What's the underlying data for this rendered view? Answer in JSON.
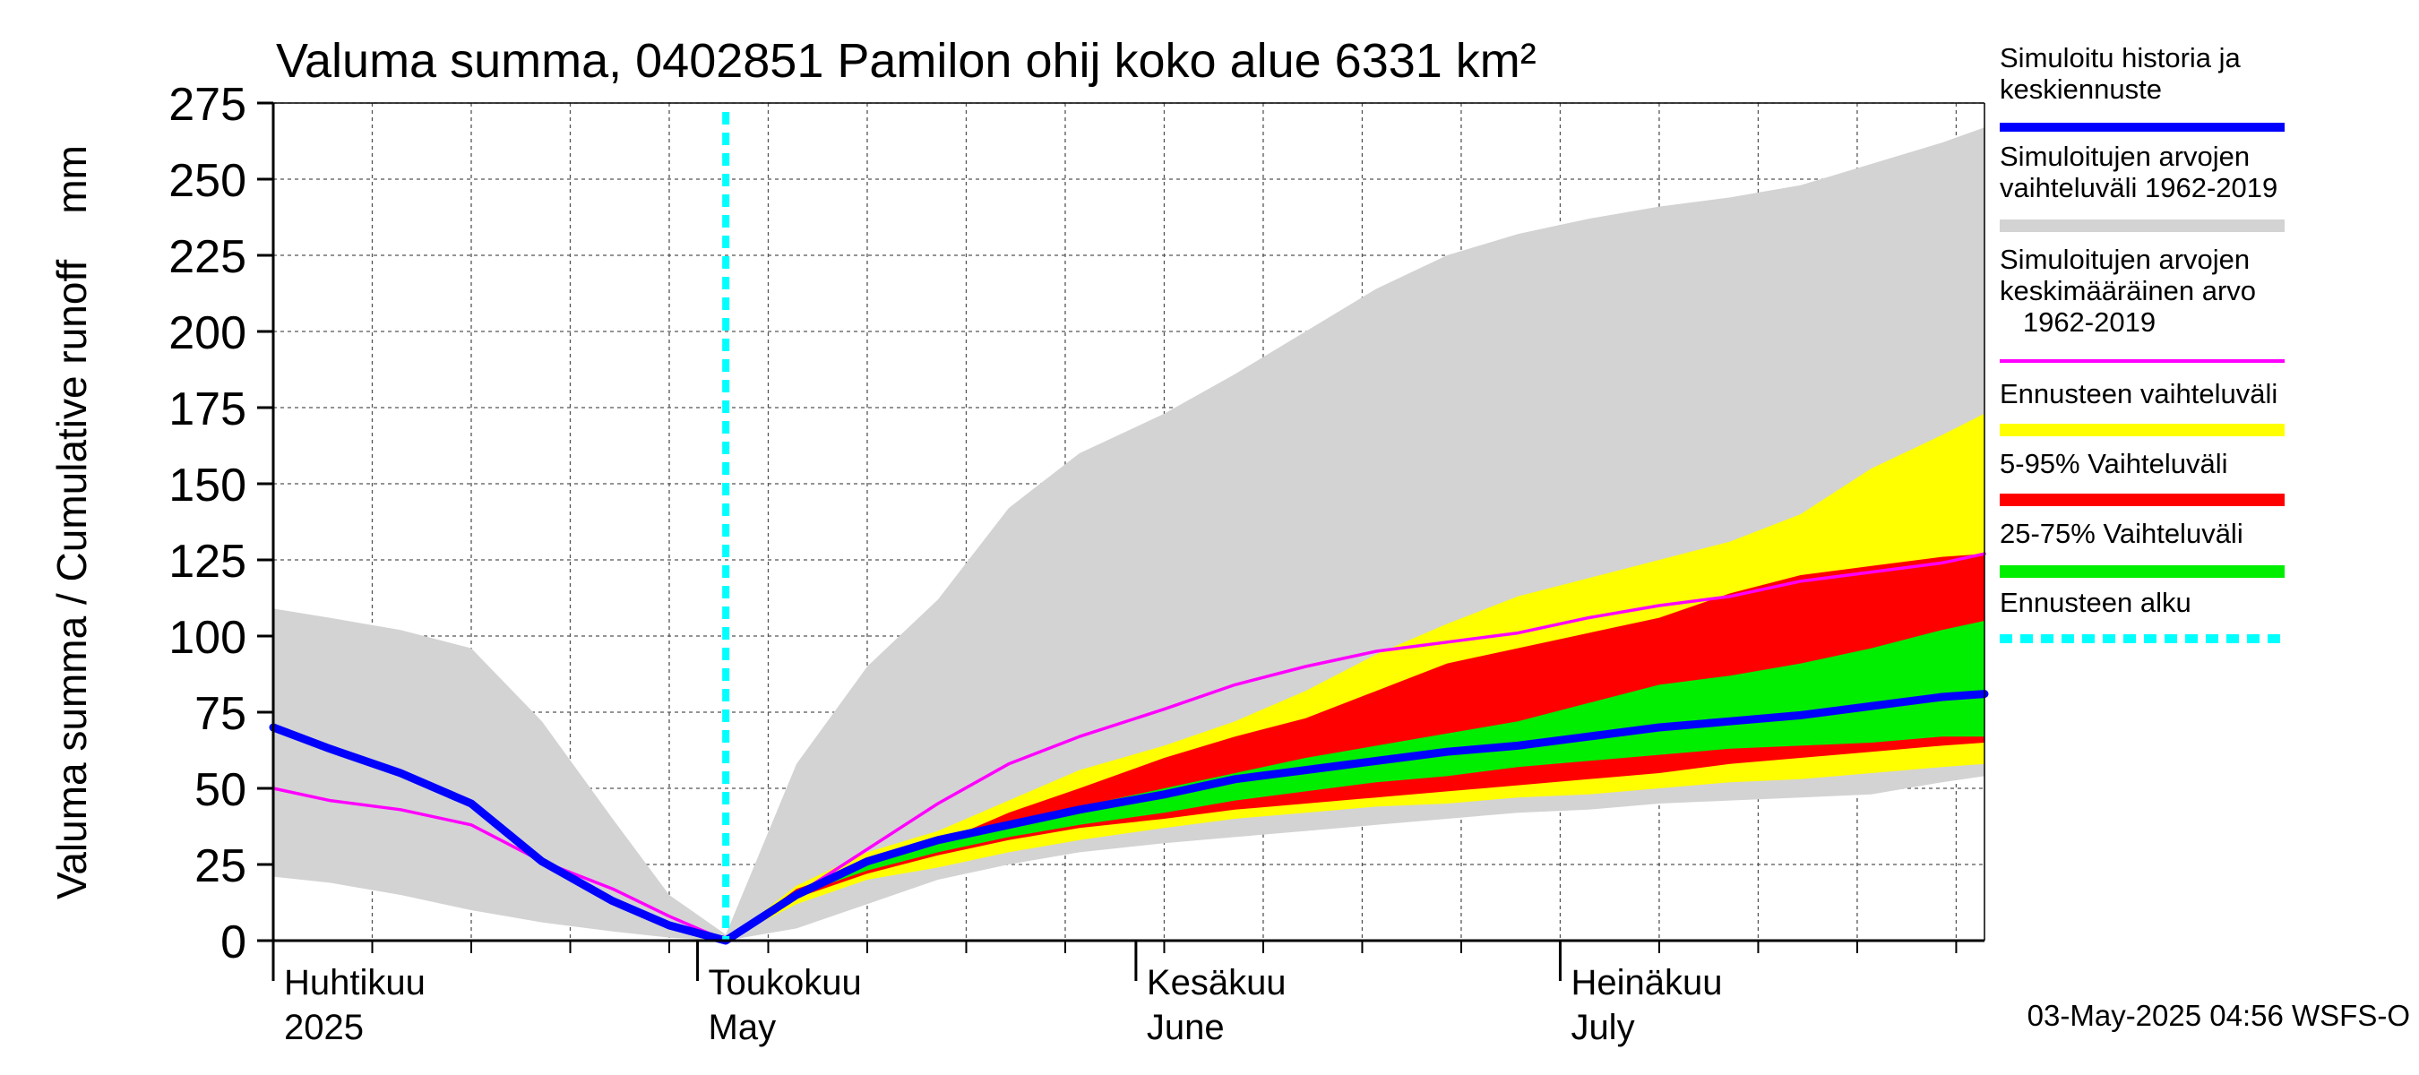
{
  "chart_data": {
    "type": "area",
    "title": "Valuma summa, 0402851 Pamilon ohij koko alue 6331 km²",
    "ylabel": "Valuma summa / Cumulative runoff    mm",
    "ylim": [
      0,
      275
    ],
    "yticks": [
      0,
      25,
      50,
      75,
      100,
      125,
      150,
      175,
      200,
      225,
      250,
      275
    ],
    "xlim": [
      "2025-04-01",
      "2025-07-31"
    ],
    "grid": true,
    "legend_position": "right",
    "x_month_labels": [
      {
        "fi": "Huhtikuu",
        "en": "2025",
        "date": "2025-04-01"
      },
      {
        "fi": "Toukokuu",
        "en": "May",
        "date": "2025-05-01"
      },
      {
        "fi": "Kesäkuu",
        "en": "June",
        "date": "2025-06-01"
      },
      {
        "fi": "Heinäkuu",
        "en": "July",
        "date": "2025-07-01"
      }
    ],
    "forecast_start": "2025-05-03",
    "timestamp": "03-May-2025 04:56 WSFS-O",
    "colors": {
      "history_median": "#0000ff",
      "sim_range": "#d3d3d3",
      "sim_mean": "#ff00ff",
      "forecast_range": "#ffff00",
      "p5_95": "#ff0000",
      "p25_75": "#00ee00",
      "forecast_start": "#00ffff"
    },
    "legend": [
      {
        "label": "Simuloitu historia ja\nkeskiennuste",
        "color": "#0000ff",
        "style": "line"
      },
      {
        "label": "Simuloitujen arvojen\nvaihteluväli 1962-2019",
        "color": "#d3d3d3",
        "style": "band"
      },
      {
        "label": "Simuloitujen arvojen\nkeskimääräinen arvo\n   1962-2019",
        "color": "#ff00ff",
        "style": "thin"
      },
      {
        "label": "Ennusteen vaihteluväli",
        "color": "#ffff00",
        "style": "band"
      },
      {
        "label": "5-95% Vaihteluväli",
        "color": "#ff0000",
        "style": "band"
      },
      {
        "label": "25-75% Vaihteluväli",
        "color": "#00ee00",
        "style": "band"
      },
      {
        "label": "Ennusteen alku",
        "color": "#00ffff",
        "style": "dotted"
      }
    ],
    "series": [
      {
        "name": "Simuloitujen arvojen vaihteluväli 1962-2019",
        "kind": "band",
        "x": [
          "2025-04-01",
          "2025-04-05",
          "2025-04-10",
          "2025-04-15",
          "2025-04-20",
          "2025-04-25",
          "2025-04-29",
          "2025-05-03",
          "2025-05-08",
          "2025-05-13",
          "2025-05-18",
          "2025-05-23",
          "2025-05-28",
          "2025-06-03",
          "2025-06-08",
          "2025-06-13",
          "2025-06-18",
          "2025-06-23",
          "2025-06-28",
          "2025-07-03",
          "2025-07-08",
          "2025-07-13",
          "2025-07-18",
          "2025-07-23",
          "2025-07-28",
          "2025-07-31"
        ],
        "low": [
          21,
          19,
          15,
          10,
          6,
          3,
          1,
          0,
          4,
          12,
          20,
          25,
          29,
          32,
          34,
          36,
          38,
          40,
          42,
          43,
          45,
          46,
          47,
          48,
          52,
          54
        ],
        "high": [
          109,
          106,
          102,
          96,
          72,
          40,
          15,
          2,
          58,
          90,
          112,
          142,
          160,
          173,
          186,
          200,
          214,
          225,
          232,
          237,
          241,
          244,
          248,
          255,
          262,
          267
        ]
      },
      {
        "name": "Ennusteen vaihteluväli",
        "kind": "band",
        "x": [
          "2025-05-03",
          "2025-05-08",
          "2025-05-13",
          "2025-05-18",
          "2025-05-23",
          "2025-05-28",
          "2025-06-03",
          "2025-06-08",
          "2025-06-13",
          "2025-06-18",
          "2025-06-23",
          "2025-06-28",
          "2025-07-03",
          "2025-07-08",
          "2025-07-13",
          "2025-07-18",
          "2025-07-23",
          "2025-07-28",
          "2025-07-31"
        ],
        "low": [
          0,
          12,
          20,
          24,
          29,
          33,
          37,
          40,
          42,
          44,
          45,
          47,
          48,
          50,
          52,
          53,
          55,
          57,
          58
        ],
        "high": [
          0,
          18,
          29,
          36,
          46,
          56,
          64,
          72,
          82,
          94,
          104,
          113,
          119,
          125,
          131,
          140,
          155,
          166,
          173
        ]
      },
      {
        "name": "5-95% Vaihteluväli",
        "kind": "band",
        "x": [
          "2025-05-03",
          "2025-05-08",
          "2025-05-13",
          "2025-05-18",
          "2025-05-23",
          "2025-05-28",
          "2025-06-03",
          "2025-06-08",
          "2025-06-13",
          "2025-06-18",
          "2025-06-23",
          "2025-06-28",
          "2025-07-03",
          "2025-07-08",
          "2025-07-13",
          "2025-07-18",
          "2025-07-23",
          "2025-07-28",
          "2025-07-31"
        ],
        "low": [
          0,
          14,
          22,
          28,
          33,
          37,
          40,
          43,
          45,
          47,
          49,
          51,
          53,
          55,
          58,
          60,
          62,
          64,
          65
        ],
        "high": [
          0,
          17,
          25,
          32,
          42,
          50,
          60,
          67,
          73,
          82,
          91,
          96,
          101,
          106,
          114,
          120,
          123,
          126,
          127
        ]
      },
      {
        "name": "25-75% Vaihteluväli",
        "kind": "band",
        "x": [
          "2025-05-03",
          "2025-05-08",
          "2025-05-13",
          "2025-05-18",
          "2025-05-23",
          "2025-05-28",
          "2025-06-03",
          "2025-06-08",
          "2025-06-13",
          "2025-06-18",
          "2025-06-23",
          "2025-06-28",
          "2025-07-03",
          "2025-07-08",
          "2025-07-13",
          "2025-07-18",
          "2025-07-23",
          "2025-07-28",
          "2025-07-31"
        ],
        "low": [
          0,
          15,
          23,
          29,
          34,
          38,
          42,
          46,
          49,
          52,
          54,
          57,
          59,
          61,
          63,
          64,
          65,
          67,
          67
        ],
        "high": [
          0,
          16,
          26,
          33,
          39,
          44,
          50,
          55,
          60,
          64,
          68,
          72,
          78,
          84,
          87,
          91,
          96,
          102,
          105
        ]
      },
      {
        "name": "Simuloitujen arvojen keskimääräinen arvo 1962-2019",
        "kind": "line",
        "x": [
          "2025-04-01",
          "2025-04-05",
          "2025-04-10",
          "2025-04-15",
          "2025-04-20",
          "2025-04-25",
          "2025-04-29",
          "2025-05-03",
          "2025-05-08",
          "2025-05-13",
          "2025-05-18",
          "2025-05-23",
          "2025-05-28",
          "2025-06-03",
          "2025-06-08",
          "2025-06-13",
          "2025-06-18",
          "2025-06-23",
          "2025-06-28",
          "2025-07-03",
          "2025-07-08",
          "2025-07-13",
          "2025-07-18",
          "2025-07-23",
          "2025-07-28",
          "2025-07-31"
        ],
        "values": [
          50,
          46,
          43,
          38,
          26,
          17,
          8,
          0,
          15,
          30,
          45,
          58,
          67,
          76,
          84,
          90,
          95,
          98,
          101,
          106,
          110,
          113,
          118,
          121,
          124,
          127
        ]
      },
      {
        "name": "Simuloitu historia ja keskiennuste",
        "kind": "line",
        "x": [
          "2025-04-01",
          "2025-04-05",
          "2025-04-10",
          "2025-04-15",
          "2025-04-20",
          "2025-04-25",
          "2025-04-29",
          "2025-05-03",
          "2025-05-08",
          "2025-05-13",
          "2025-05-18",
          "2025-05-23",
          "2025-05-28",
          "2025-06-03",
          "2025-06-08",
          "2025-06-13",
          "2025-06-18",
          "2025-06-23",
          "2025-06-28",
          "2025-07-03",
          "2025-07-08",
          "2025-07-13",
          "2025-07-18",
          "2025-07-23",
          "2025-07-28",
          "2025-07-31"
        ],
        "values": [
          70,
          63,
          55,
          45,
          26,
          13,
          5,
          0,
          15,
          26,
          33,
          38,
          43,
          48,
          53,
          56,
          59,
          62,
          64,
          67,
          70,
          72,
          74,
          77,
          80,
          81
        ]
      }
    ]
  }
}
